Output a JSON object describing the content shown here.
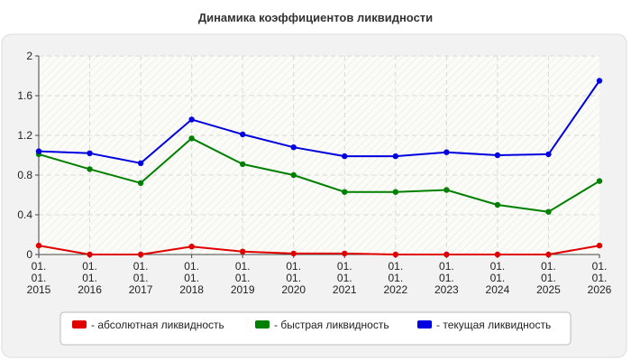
{
  "chart_data": {
    "type": "line",
    "title": "Динамика коэффициентов ликвидности",
    "xlabel": "",
    "ylabel": "",
    "x": [
      [
        "01.",
        "01.",
        "2015"
      ],
      [
        "01.",
        "01.",
        "2016"
      ],
      [
        "01.",
        "01.",
        "2017"
      ],
      [
        "01.",
        "01.",
        "2018"
      ],
      [
        "01.",
        "01.",
        "2019"
      ],
      [
        "01.",
        "01.",
        "2020"
      ],
      [
        "01.",
        "01.",
        "2021"
      ],
      [
        "01.",
        "01.",
        "2022"
      ],
      [
        "01.",
        "01.",
        "2023"
      ],
      [
        "01.",
        "01.",
        "2024"
      ],
      [
        "01.",
        "01.",
        "2025"
      ],
      [
        "01.",
        "01.",
        "2026"
      ]
    ],
    "ylim": [
      0,
      2
    ],
    "yticks": [
      "0",
      "0.4",
      "0.8",
      "1.2",
      "1.6",
      "2"
    ],
    "grid": true,
    "legend_position": "bottom",
    "series": [
      {
        "name": "- абсолютная ликвидность",
        "color": "#e00000",
        "values": [
          0.09,
          0.0,
          0.0,
          0.08,
          0.03,
          0.01,
          0.01,
          0.0,
          0.0,
          0.0,
          0.0,
          0.09
        ]
      },
      {
        "name": "- быстрая ликвидность",
        "color": "#008000",
        "values": [
          1.01,
          0.86,
          0.72,
          1.17,
          0.91,
          0.8,
          0.63,
          0.63,
          0.65,
          0.5,
          0.43,
          0.74
        ]
      },
      {
        "name": "- текущая ликвидность",
        "color": "#0000e0",
        "values": [
          1.04,
          1.02,
          0.92,
          1.36,
          1.21,
          1.08,
          0.99,
          0.99,
          1.03,
          1.0,
          1.01,
          1.75
        ]
      }
    ]
  }
}
